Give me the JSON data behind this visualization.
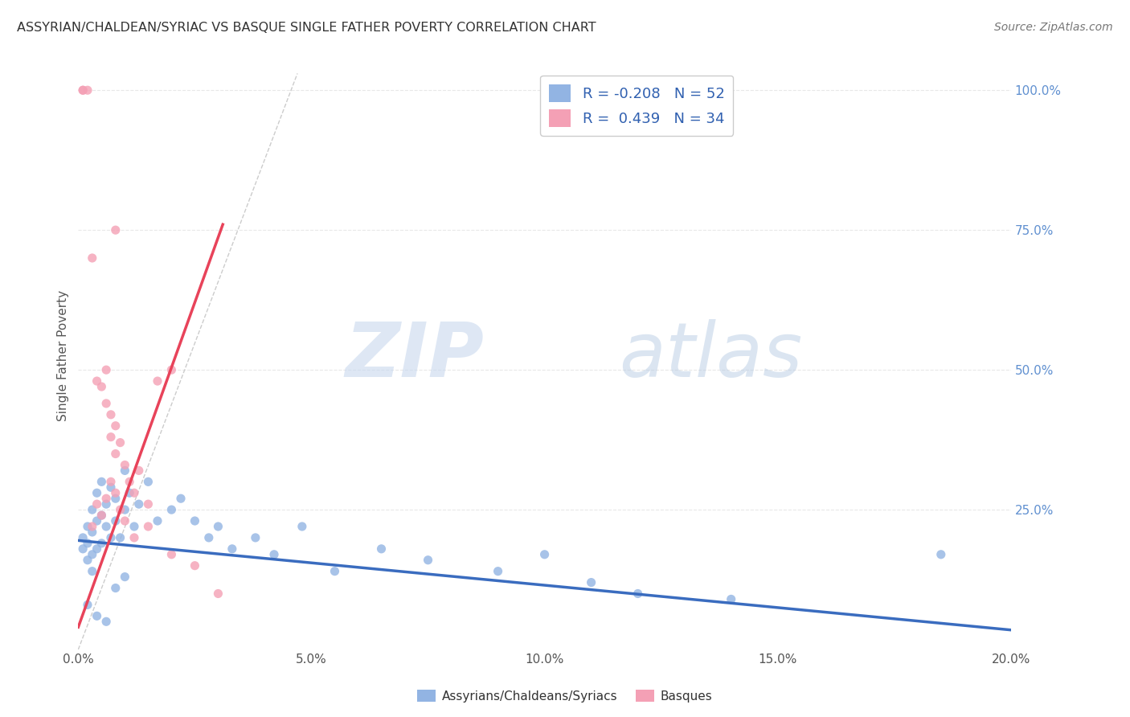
{
  "title": "ASSYRIAN/CHALDEAN/SYRIAC VS BASQUE SINGLE FATHER POVERTY CORRELATION CHART",
  "source": "Source: ZipAtlas.com",
  "ylabel": "Single Father Poverty",
  "xlim": [
    0.0,
    0.2
  ],
  "ylim": [
    0.0,
    1.05
  ],
  "xtick_labels": [
    "0.0%",
    "5.0%",
    "10.0%",
    "15.0%",
    "20.0%"
  ],
  "xtick_vals": [
    0.0,
    0.05,
    0.1,
    0.15,
    0.2
  ],
  "ytick_labels": [
    "25.0%",
    "50.0%",
    "75.0%",
    "100.0%"
  ],
  "ytick_vals": [
    0.25,
    0.5,
    0.75,
    1.0
  ],
  "blue_color": "#92b4e3",
  "pink_color": "#f4a0b5",
  "blue_line_color": "#3a6cbf",
  "pink_line_color": "#e8435a",
  "blue_R": -0.208,
  "blue_N": 52,
  "pink_R": 0.439,
  "pink_N": 34,
  "legend_label_blue": "Assyrians/Chaldeans/Syriacs",
  "legend_label_pink": "Basques",
  "watermark_zip": "ZIP",
  "watermark_atlas": "atlas",
  "background_color": "#ffffff",
  "grid_color": "#e8e8e8",
  "right_axis_color": "#6090d0",
  "blue_scatter_x": [
    0.001,
    0.001,
    0.002,
    0.002,
    0.002,
    0.003,
    0.003,
    0.003,
    0.003,
    0.004,
    0.004,
    0.004,
    0.005,
    0.005,
    0.005,
    0.006,
    0.006,
    0.007,
    0.007,
    0.008,
    0.008,
    0.009,
    0.01,
    0.01,
    0.011,
    0.012,
    0.013,
    0.015,
    0.017,
    0.02,
    0.022,
    0.025,
    0.028,
    0.03,
    0.033,
    0.038,
    0.042,
    0.048,
    0.055,
    0.065,
    0.075,
    0.09,
    0.1,
    0.11,
    0.12,
    0.14,
    0.002,
    0.004,
    0.006,
    0.008,
    0.01,
    0.185
  ],
  "blue_scatter_y": [
    0.2,
    0.18,
    0.22,
    0.19,
    0.16,
    0.25,
    0.21,
    0.17,
    0.14,
    0.28,
    0.23,
    0.18,
    0.3,
    0.24,
    0.19,
    0.26,
    0.22,
    0.29,
    0.2,
    0.27,
    0.23,
    0.2,
    0.32,
    0.25,
    0.28,
    0.22,
    0.26,
    0.3,
    0.23,
    0.25,
    0.27,
    0.23,
    0.2,
    0.22,
    0.18,
    0.2,
    0.17,
    0.22,
    0.14,
    0.18,
    0.16,
    0.14,
    0.17,
    0.12,
    0.1,
    0.09,
    0.08,
    0.06,
    0.05,
    0.11,
    0.13,
    0.17
  ],
  "pink_scatter_x": [
    0.001,
    0.001,
    0.002,
    0.003,
    0.004,
    0.005,
    0.006,
    0.006,
    0.007,
    0.007,
    0.008,
    0.008,
    0.009,
    0.01,
    0.011,
    0.012,
    0.013,
    0.015,
    0.017,
    0.02,
    0.003,
    0.004,
    0.005,
    0.006,
    0.007,
    0.008,
    0.009,
    0.01,
    0.012,
    0.015,
    0.02,
    0.025,
    0.03,
    0.008
  ],
  "pink_scatter_y": [
    1.0,
    1.0,
    1.0,
    0.7,
    0.48,
    0.47,
    0.5,
    0.44,
    0.42,
    0.38,
    0.4,
    0.35,
    0.37,
    0.33,
    0.3,
    0.28,
    0.32,
    0.26,
    0.48,
    0.5,
    0.22,
    0.26,
    0.24,
    0.27,
    0.3,
    0.28,
    0.25,
    0.23,
    0.2,
    0.22,
    0.17,
    0.15,
    0.1,
    0.75
  ],
  "diag_line_x": [
    0.0,
    0.047
  ],
  "diag_line_y": [
    0.0,
    1.03
  ],
  "blue_line_x": [
    0.0,
    0.2
  ],
  "blue_line_y": [
    0.195,
    0.035
  ],
  "pink_line_x": [
    0.0,
    0.031
  ],
  "pink_line_y": [
    0.04,
    0.76
  ]
}
